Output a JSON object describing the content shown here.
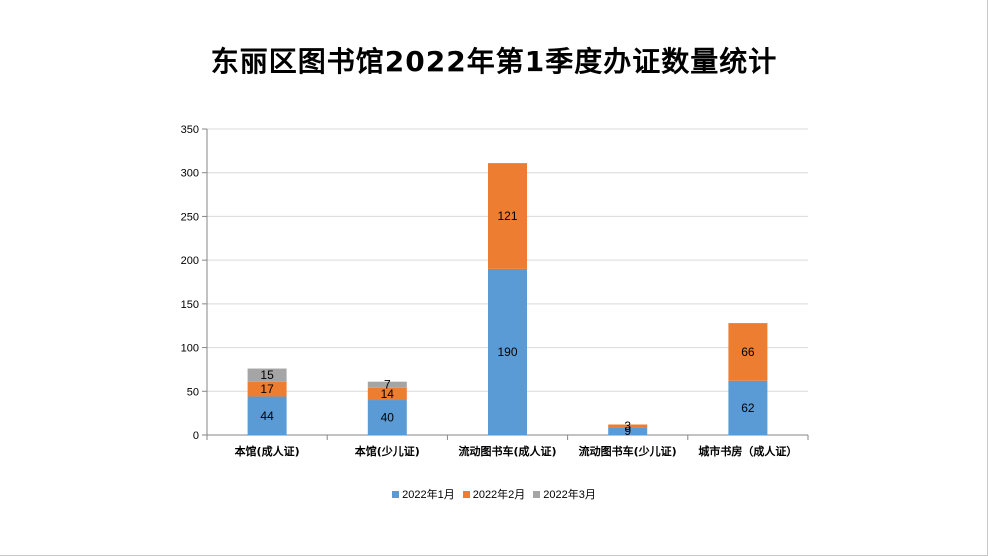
{
  "chart_data": {
    "type": "bar",
    "stacked": true,
    "title": "东丽区图书馆2022年第1季度办证数量统计",
    "xlabel": "",
    "ylabel": "",
    "categories": [
      "本馆(成人证)",
      "本馆(少儿证)",
      "流动图书车(成人证)",
      "流动图书车(少儿证)",
      "城市书房（成人证）"
    ],
    "series": [
      {
        "name": "2022年1月",
        "color": "#5b9bd5",
        "values": [
          44,
          40,
          190,
          9,
          62
        ]
      },
      {
        "name": "2022年2月",
        "color": "#ed7d31",
        "values": [
          17,
          14,
          121,
          3,
          66
        ]
      },
      {
        "name": "2022年3月",
        "color": "#a5a5a5",
        "values": [
          15,
          7,
          0,
          0,
          0
        ]
      }
    ],
    "ylim": [
      0,
      350
    ],
    "yticks": [
      0,
      50,
      100,
      150,
      200,
      250,
      300,
      350
    ],
    "grid": true,
    "legend_position": "bottom"
  }
}
